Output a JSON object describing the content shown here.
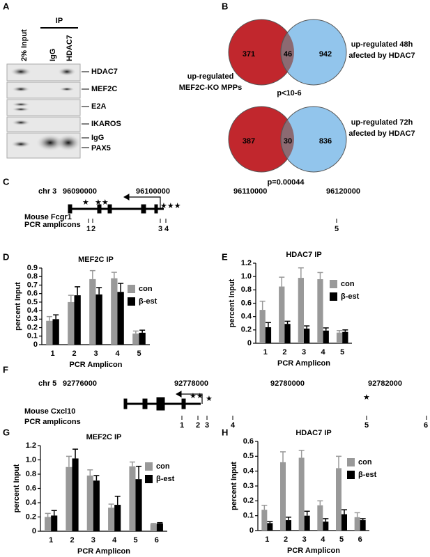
{
  "panels": [
    "A",
    "B",
    "C",
    "D",
    "E",
    "F",
    "G",
    "H"
  ],
  "blot": {
    "columns": [
      "2% Input",
      "IgG",
      "HDAC7"
    ],
    "ip_label": "IP",
    "rows": [
      "HDAC7",
      "MEF2C",
      "E2A",
      "IKAROS",
      "IgG",
      "PAX5"
    ]
  },
  "venn": [
    {
      "left": "371",
      "overlap": "46",
      "right": "942",
      "p": "p<10-6",
      "right_label": [
        "up-regulated 48h",
        "afected by HDAC7"
      ]
    },
    {
      "left": "387",
      "overlap": "30",
      "right": "836",
      "p": "p=0.00044",
      "right_label": [
        "up-regulated 72h",
        "afected by HDAC7"
      ]
    }
  ],
  "venn_left_label": [
    "up-regulated",
    "MEF2C-KO MPPs"
  ],
  "genes": [
    {
      "chr": "chr 3",
      "coords": [
        "96090000",
        "96100000",
        "96110000",
        "96120000"
      ],
      "gene": "Mouse Fcgr1",
      "amplicon_label": "PCR amplicons",
      "amplicons": [
        "1",
        "2",
        "3",
        "4",
        "5"
      ]
    },
    {
      "chr": "chr 5",
      "coords": [
        "92776000",
        "92778000",
        "92780000",
        "92782000"
      ],
      "gene": "Mouse Cxcl10",
      "amplicon_label": "PCR amplicons",
      "amplicons": [
        "1",
        "2",
        "3",
        "4",
        "5",
        "6"
      ]
    }
  ],
  "chart_data": [
    {
      "type": "bar",
      "title": "MEF2C IP",
      "xlabel": "PCR Amplicon",
      "ylabel": "percent Input",
      "categories": [
        "1",
        "2",
        "3",
        "4",
        "5"
      ],
      "series": [
        {
          "name": "con",
          "color": "#999999",
          "values": [
            0.28,
            0.5,
            0.77,
            0.78,
            0.13
          ],
          "errors": [
            0.05,
            0.08,
            0.1,
            0.07,
            0.03
          ]
        },
        {
          "name": "β-est",
          "color": "#000000",
          "values": [
            0.3,
            0.58,
            0.59,
            0.62,
            0.14
          ],
          "errors": [
            0.05,
            0.1,
            0.08,
            0.1,
            0.03
          ]
        }
      ],
      "ylim": [
        0,
        0.9
      ],
      "yticks": [
        0,
        0.1,
        0.2,
        0.3,
        0.4,
        0.5,
        0.6,
        0.7,
        0.8,
        0.9
      ],
      "legend": "upper right"
    },
    {
      "type": "bar",
      "title": "HDAC7 IP",
      "xlabel": "PCR Amplicon",
      "ylabel": "percent Input",
      "categories": [
        "1",
        "2",
        "3",
        "4",
        "5"
      ],
      "series": [
        {
          "name": "con",
          "color": "#999999",
          "values": [
            0.5,
            0.85,
            0.98,
            0.96,
            0.16
          ],
          "errors": [
            0.13,
            0.14,
            0.15,
            0.1,
            0.03
          ]
        },
        {
          "name": "β-est",
          "color": "#000000",
          "values": [
            0.24,
            0.29,
            0.22,
            0.19,
            0.17
          ],
          "errors": [
            0.07,
            0.04,
            0.04,
            0.04,
            0.03
          ]
        }
      ],
      "ylim": [
        0,
        1.2
      ],
      "yticks": [
        0,
        0.2,
        0.4,
        0.6,
        0.8,
        {
          "value": 1,
          "label": "1.0"
        },
        1.2
      ],
      "legend": "upper right"
    },
    {
      "type": "bar",
      "title": "MEF2C IP",
      "xlabel": "PCR Amplicon",
      "ylabel": "percent Input",
      "categories": [
        "1",
        "2",
        "3",
        "4",
        "5",
        "6"
      ],
      "series": [
        {
          "name": "con",
          "color": "#999999",
          "values": [
            0.2,
            0.9,
            0.78,
            0.33,
            0.91,
            0.1
          ],
          "errors": [
            0.05,
            0.15,
            0.08,
            0.05,
            0.06,
            0.01
          ]
        },
        {
          "name": "β-est",
          "color": "#000000",
          "values": [
            0.22,
            1.02,
            0.71,
            0.37,
            0.73,
            0.11
          ],
          "errors": [
            0.07,
            0.13,
            0.07,
            0.12,
            0.18,
            0.01
          ]
        }
      ],
      "ylim": [
        0,
        1.2
      ],
      "yticks": [
        0,
        0.2,
        0.4,
        0.6,
        0.8,
        {
          "value": 1,
          "label": "1.0"
        },
        1.2
      ],
      "legend": "upper right"
    },
    {
      "type": "bar",
      "title": "HDAC7 IP",
      "xlabel": "PCR Amplicon",
      "ylabel": "percent Input",
      "categories": [
        "1",
        "2",
        "3",
        "4",
        "5",
        "6"
      ],
      "series": [
        {
          "name": "con",
          "color": "#999999",
          "values": [
            0.14,
            0.46,
            0.49,
            0.17,
            0.42,
            0.09
          ],
          "errors": [
            0.03,
            0.07,
            0.05,
            0.03,
            0.08,
            0.03
          ]
        },
        {
          "name": "β-est",
          "color": "#000000",
          "values": [
            0.05,
            0.07,
            0.1,
            0.06,
            0.11,
            0.07
          ],
          "errors": [
            0.01,
            0.02,
            0.03,
            0.02,
            0.03,
            0.01
          ]
        }
      ],
      "ylim": [
        0,
        0.6
      ],
      "yticks": [
        0,
        0.1,
        0.2,
        0.3,
        0.4,
        0.5,
        0.6
      ],
      "legend": "upper right"
    }
  ]
}
